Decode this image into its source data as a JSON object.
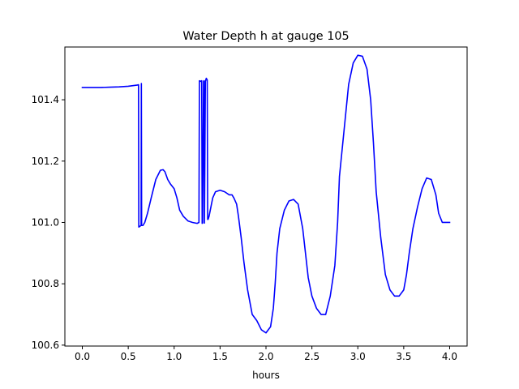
{
  "chart_data": {
    "type": "line",
    "title": "Water Depth h at gauge 105",
    "xlabel": "hours",
    "ylabel": "",
    "xlim": [
      -0.19,
      4.19
    ],
    "ylim": [
      100.597,
      101.572
    ],
    "grid": false,
    "legend": "none",
    "x_ticks": [
      0.0,
      0.5,
      1.0,
      1.5,
      2.0,
      2.5,
      3.0,
      3.5,
      4.0
    ],
    "x_tick_labels": [
      "0.0",
      "0.5",
      "1.0",
      "1.5",
      "2.0",
      "2.5",
      "3.0",
      "3.5",
      "4.0"
    ],
    "y_ticks": [
      100.6,
      100.8,
      101.0,
      101.2,
      101.4
    ],
    "y_tick_labels": [
      "100.6",
      "100.8",
      "101.0",
      "101.2",
      "101.4"
    ],
    "series": [
      {
        "color": "#0000ff",
        "x": [
          0.0,
          0.1,
          0.2,
          0.3,
          0.4,
          0.5,
          0.55,
          0.6,
          0.612,
          0.615,
          0.63,
          0.64,
          0.643,
          0.646,
          0.66,
          0.68,
          0.71,
          0.75,
          0.8,
          0.85,
          0.88,
          0.9,
          0.93,
          0.96,
          1.0,
          1.03,
          1.06,
          1.1,
          1.15,
          1.2,
          1.25,
          1.27,
          1.275,
          1.29,
          1.3,
          1.305,
          1.31,
          1.32,
          1.325,
          1.33,
          1.34,
          1.345,
          1.35,
          1.36,
          1.365,
          1.37,
          1.38,
          1.4,
          1.42,
          1.45,
          1.5,
          1.55,
          1.6,
          1.63,
          1.65,
          1.68,
          1.7,
          1.73,
          1.76,
          1.8,
          1.85,
          1.9,
          1.95,
          2.0,
          2.05,
          2.08,
          2.1,
          2.12,
          2.15,
          2.2,
          2.25,
          2.3,
          2.35,
          2.4,
          2.43,
          2.46,
          2.5,
          2.55,
          2.6,
          2.65,
          2.7,
          2.75,
          2.78,
          2.8,
          2.85,
          2.9,
          2.95,
          3.0,
          3.05,
          3.1,
          3.14,
          3.17,
          3.2,
          3.25,
          3.3,
          3.35,
          3.4,
          3.45,
          3.5,
          3.53,
          3.56,
          3.6,
          3.65,
          3.7,
          3.75,
          3.8,
          3.85,
          3.88,
          3.92,
          3.95,
          3.98,
          4.0
        ],
        "y": [
          101.44,
          101.44,
          101.44,
          101.441,
          101.442,
          101.444,
          101.446,
          101.448,
          101.449,
          100.985,
          100.988,
          100.99,
          101.453,
          100.99,
          100.99,
          101.0,
          101.03,
          101.08,
          101.14,
          101.17,
          101.172,
          101.165,
          101.14,
          101.125,
          101.11,
          101.08,
          101.04,
          101.02,
          101.005,
          101.0,
          100.997,
          101.0,
          101.462,
          101.46,
          101.462,
          100.997,
          100.998,
          101.46,
          101.462,
          100.998,
          101.46,
          101.465,
          101.47,
          101.465,
          101.01,
          101.01,
          101.02,
          101.05,
          101.08,
          101.1,
          101.105,
          101.1,
          101.09,
          101.09,
          101.08,
          101.06,
          101.02,
          100.95,
          100.87,
          100.78,
          100.7,
          100.68,
          100.65,
          100.64,
          100.66,
          100.72,
          100.8,
          100.9,
          100.98,
          101.04,
          101.07,
          101.075,
          101.06,
          100.98,
          100.9,
          100.82,
          100.76,
          100.72,
          100.7,
          100.7,
          100.76,
          100.86,
          101.0,
          101.15,
          101.3,
          101.45,
          101.52,
          101.545,
          101.542,
          101.5,
          101.4,
          101.26,
          101.1,
          100.95,
          100.83,
          100.78,
          100.76,
          100.76,
          100.78,
          100.83,
          100.9,
          100.98,
          101.05,
          101.11,
          101.145,
          101.14,
          101.09,
          101.03,
          101.0,
          101.0,
          101.0,
          101.0
        ]
      }
    ]
  }
}
